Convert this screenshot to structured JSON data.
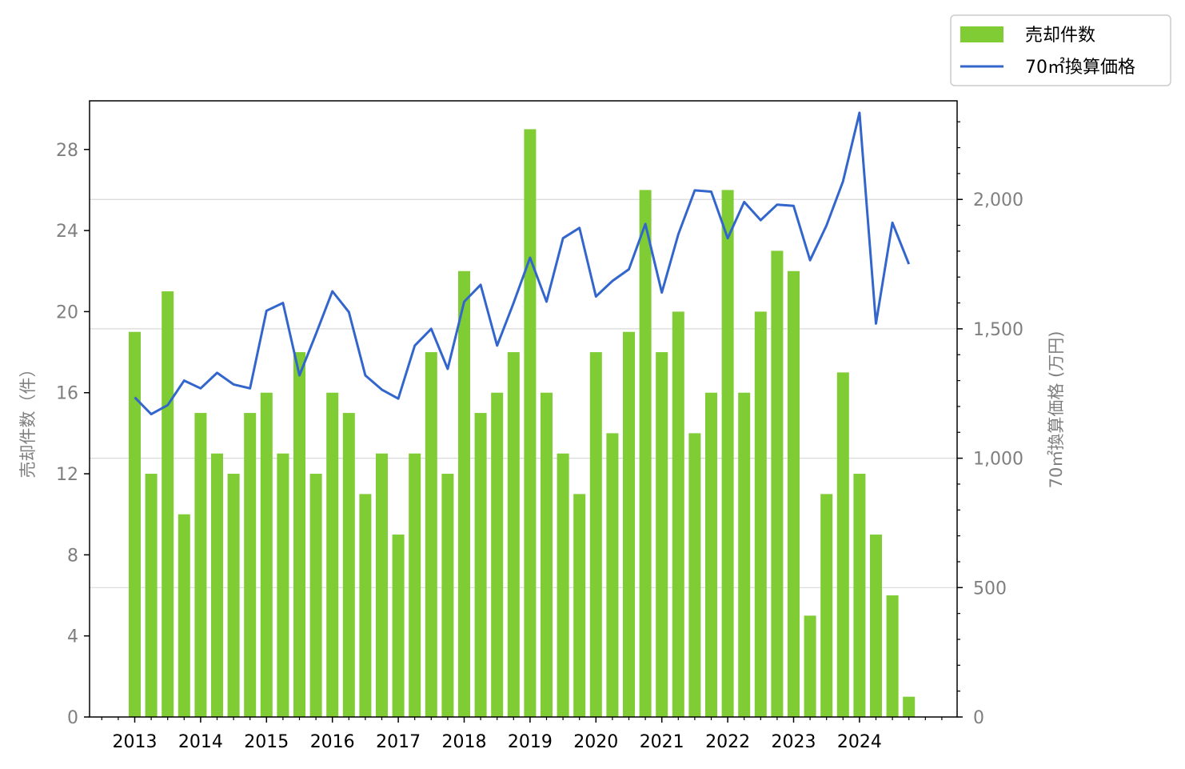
{
  "chart_data": {
    "type": "bar+line",
    "title": "",
    "xlabel": "",
    "ylabel": "売却件数（件）",
    "y2label": "70㎡換算価格 (万円)",
    "ylim": [
      0,
      30.4
    ],
    "y2lim": [
      0,
      2381
    ],
    "yticks": [
      0,
      4,
      8,
      12,
      16,
      20,
      24,
      28
    ],
    "y2ticks": [
      0,
      500,
      1000,
      1500,
      2000
    ],
    "y2tick_labels": [
      "0",
      "500",
      "1,000",
      "1,500",
      "2,000"
    ],
    "xticks": [
      "2013",
      "2014",
      "2015",
      "2016",
      "2017",
      "2018",
      "2019",
      "2020",
      "2021",
      "2022",
      "2023",
      "2024"
    ],
    "grid": "y2-major",
    "legend": "outside-top-right",
    "colors": {
      "bars": "#7fcc34",
      "line": "#3366cc"
    },
    "series": [
      {
        "name": "売却件数",
        "type": "bar",
        "axis": "left",
        "values": [
          19,
          12,
          21,
          10,
          15,
          13,
          12,
          15,
          16,
          13,
          18,
          12,
          16,
          15,
          11,
          13,
          9,
          13,
          18,
          12,
          22,
          15,
          16,
          18,
          29,
          16,
          13,
          11,
          18,
          14,
          19,
          26,
          18,
          20,
          14,
          16,
          26,
          16,
          20,
          23,
          22,
          5,
          11,
          17,
          12,
          9,
          6,
          1
        ]
      },
      {
        "name": "70㎡換算価格",
        "type": "line",
        "axis": "right",
        "values": [
          1235,
          1170,
          1205,
          1300,
          1270,
          1330,
          1285,
          1270,
          1570,
          1600,
          1320,
          1480,
          1645,
          1565,
          1320,
          1265,
          1230,
          1435,
          1500,
          1345,
          1605,
          1670,
          1435,
          1600,
          1775,
          1605,
          1850,
          1890,
          1625,
          1685,
          1730,
          1905,
          1640,
          1865,
          2035,
          2030,
          1850,
          1990,
          1920,
          1980,
          1975,
          1765,
          1900,
          2070,
          2335,
          1520,
          1910,
          1750
        ]
      }
    ]
  }
}
